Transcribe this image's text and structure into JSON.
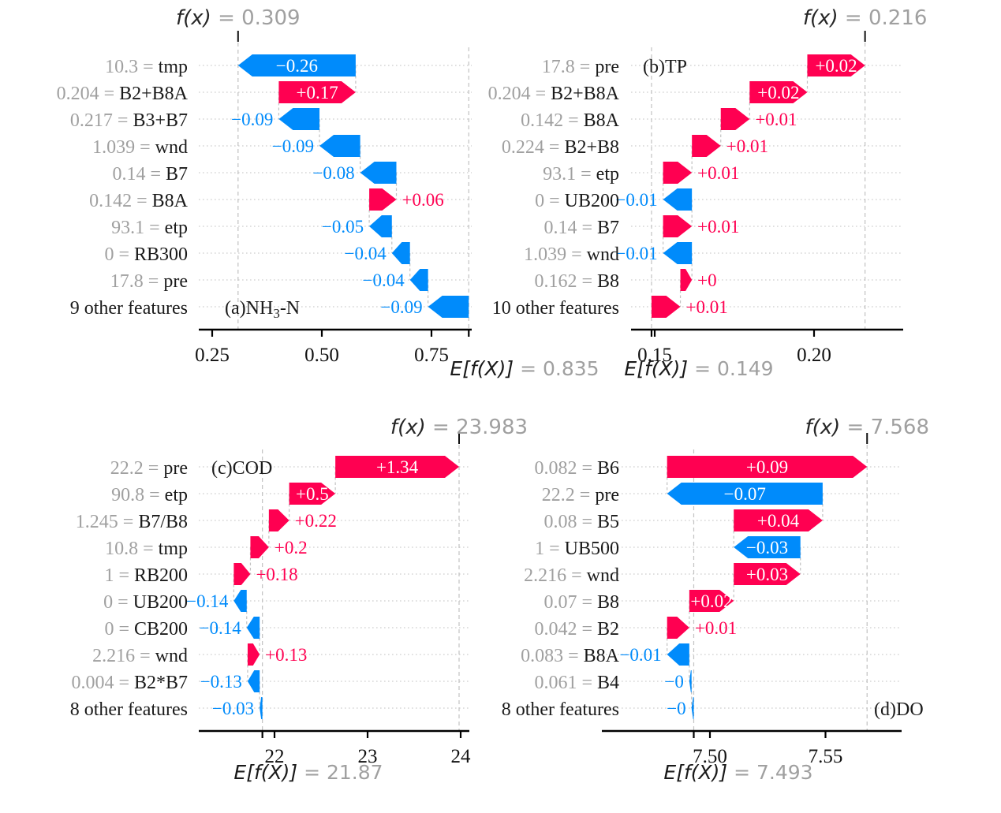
{
  "figure": {
    "colors": {
      "positive": "#ff0051",
      "negative": "#008bfb",
      "muted_text": "#a0a0a0",
      "ink": "#1a1a1a",
      "row_dots": "#d6d6d6",
      "guide_dash": "#c2c2c2"
    }
  },
  "chart_data": [
    {
      "id": "a",
      "type": "waterfall",
      "panel_label_segments": [
        {
          "text": "(a)NH"
        },
        {
          "text": "3",
          "subscript": true
        },
        {
          "text": "-N"
        }
      ],
      "fx": {
        "label": "f(x)",
        "eq": "=",
        "value": 0.309,
        "display": "0.309"
      },
      "ef": {
        "label": "E[f(X)]",
        "eq": "=",
        "value": 0.835,
        "display": "0.835"
      },
      "xticks": [
        {
          "v": 0.25,
          "label": "0.25"
        },
        {
          "v": 0.5,
          "label": "0.50"
        },
        {
          "v": 0.75,
          "label": "0.75"
        }
      ],
      "xrange": [
        0.219,
        0.842
      ],
      "features": [
        {
          "value": "10.3",
          "name": "tmp",
          "c": -0.26,
          "label": "−0.26",
          "label_inside": true
        },
        {
          "value": "0.204",
          "name": "B2+B8A",
          "c": 0.17,
          "label": "+0.17",
          "label_inside": true
        },
        {
          "value": "0.217",
          "name": "B3+B7",
          "c": -0.09,
          "label": "−0.09",
          "label_inside": false
        },
        {
          "value": "1.039",
          "name": "wnd",
          "c": -0.09,
          "label": "−0.09",
          "label_inside": false
        },
        {
          "value": "0.14",
          "name": "B7",
          "c": -0.08,
          "label": "−0.08",
          "label_inside": false
        },
        {
          "value": "0.142",
          "name": "B8A",
          "c": 0.06,
          "label": "+0.06",
          "label_inside": false
        },
        {
          "value": "93.1",
          "name": "etp",
          "c": -0.05,
          "label": "−0.05",
          "label_inside": false
        },
        {
          "value": "0",
          "name": "RB300",
          "c": -0.04,
          "label": "−0.04",
          "label_inside": false
        },
        {
          "value": "17.8",
          "name": "pre",
          "c": -0.04,
          "label": "−0.04",
          "label_inside": false
        },
        {
          "value": "",
          "name": "9 other features",
          "c": -0.09,
          "label": "−0.09",
          "label_inside": false
        }
      ]
    },
    {
      "id": "b",
      "type": "waterfall",
      "panel_label_segments": [
        {
          "text": "(b)TP"
        }
      ],
      "fx": {
        "label": "f(x)",
        "eq": "=",
        "value": 0.216,
        "display": "0.216"
      },
      "ef": {
        "label": "E[f(X)]",
        "eq": "=",
        "value": 0.149,
        "display": "0.149"
      },
      "xticks": [
        {
          "v": 0.15,
          "label": "0.15"
        },
        {
          "v": 0.2,
          "label": "0.20"
        }
      ],
      "xrange": [
        0.1426,
        0.228
      ],
      "features": [
        {
          "value": "17.8",
          "name": "pre",
          "c": 0.02,
          "label": "+0.02",
          "label_inside": true
        },
        {
          "value": "0.204",
          "name": "B2+B8A",
          "c": 0.02,
          "label": "+0.02",
          "label_inside": true
        },
        {
          "value": "0.142",
          "name": "B8A",
          "c": 0.01,
          "label": "+0.01",
          "label_inside": false
        },
        {
          "value": "0.224",
          "name": "B2+B8",
          "c": 0.01,
          "label": "+0.01",
          "label_inside": false
        },
        {
          "value": "93.1",
          "name": "etp",
          "c": 0.01,
          "label": "+0.01",
          "label_inside": false
        },
        {
          "value": "0",
          "name": "UB200",
          "c": -0.01,
          "label": "−0.01",
          "label_inside": false
        },
        {
          "value": "0.14",
          "name": "B7",
          "c": 0.01,
          "label": "+0.01",
          "label_inside": false
        },
        {
          "value": "1.039",
          "name": "wnd",
          "c": -0.01,
          "label": "−0.01",
          "label_inside": false
        },
        {
          "value": "0.162",
          "name": "B8",
          "c": 0.004,
          "label": "+0",
          "label_inside": false
        },
        {
          "value": "",
          "name": "10 other features",
          "c": 0.01,
          "label": "+0.01",
          "label_inside": false
        }
      ]
    },
    {
      "id": "c",
      "type": "waterfall",
      "panel_label_segments": [
        {
          "text": "(c)COD"
        }
      ],
      "fx": {
        "label": "f(x)",
        "eq": "=",
        "value": 23.983,
        "display": "23.983"
      },
      "ef": {
        "label": "E[f(X)]",
        "eq": "=",
        "value": 21.87,
        "display": "21.87"
      },
      "xticks": [
        {
          "v": 22,
          "label": "22"
        },
        {
          "v": 23,
          "label": "23"
        },
        {
          "v": 24,
          "label": "24"
        }
      ],
      "xrange": [
        21.19,
        24.09
      ],
      "features": [
        {
          "value": "22.2",
          "name": "pre",
          "c": 1.34,
          "label": "+1.34",
          "label_inside": true
        },
        {
          "value": "90.8",
          "name": "etp",
          "c": 0.5,
          "label": "+0.5",
          "label_inside": true
        },
        {
          "value": "1.245",
          "name": "B7/B8",
          "c": 0.22,
          "label": "+0.22",
          "label_inside": false
        },
        {
          "value": "10.8",
          "name": "tmp",
          "c": 0.2,
          "label": "+0.2",
          "label_inside": false
        },
        {
          "value": "1",
          "name": "RB200",
          "c": 0.18,
          "label": "+0.18",
          "label_inside": false
        },
        {
          "value": "0",
          "name": "UB200",
          "c": -0.14,
          "label": "−0.14",
          "label_inside": false
        },
        {
          "value": "0",
          "name": "CB200",
          "c": -0.14,
          "label": "−0.14",
          "label_inside": false
        },
        {
          "value": "2.216",
          "name": "wnd",
          "c": 0.13,
          "label": "+0.13",
          "label_inside": false
        },
        {
          "value": "0.004",
          "name": "B2*B7",
          "c": -0.13,
          "label": "−0.13",
          "label_inside": false
        },
        {
          "value": "",
          "name": "8 other features",
          "c": -0.03,
          "label": "−0.03",
          "label_inside": false
        }
      ]
    },
    {
      "id": "d",
      "type": "waterfall",
      "panel_label_segments": [
        {
          "text": "(d)DO"
        }
      ],
      "fx": {
        "label": "f(x)",
        "eq": "=",
        "value": 7.568,
        "display": "7.568"
      },
      "ef": {
        "label": "E[f(X)]",
        "eq": "=",
        "value": 7.493,
        "display": "7.493"
      },
      "xticks": [
        {
          "v": 7.5,
          "label": "7.50"
        },
        {
          "v": 7.55,
          "label": "7.55"
        }
      ],
      "xrange": [
        7.453,
        7.583
      ],
      "features": [
        {
          "value": "0.082",
          "name": "B6",
          "c": 0.09,
          "label": "+0.09",
          "label_inside": true
        },
        {
          "value": "22.2",
          "name": "pre",
          "c": -0.07,
          "label": "−0.07",
          "label_inside": true
        },
        {
          "value": "0.08",
          "name": "B5",
          "c": 0.04,
          "label": "+0.04",
          "label_inside": true
        },
        {
          "value": "1",
          "name": "UB500",
          "c": -0.03,
          "label": "−0.03",
          "label_inside": true
        },
        {
          "value": "2.216",
          "name": "wnd",
          "c": 0.03,
          "label": "+0.03",
          "label_inside": true
        },
        {
          "value": "0.07",
          "name": "B8",
          "c": 0.02,
          "label": "+0.02",
          "label_inside": true
        },
        {
          "value": "0.042",
          "name": "B2",
          "c": 0.01,
          "label": "+0.01",
          "label_inside": false
        },
        {
          "value": "0.083",
          "name": "B8A",
          "c": -0.01,
          "label": "−0.01",
          "label_inside": false
        },
        {
          "value": "0.061",
          "name": "B4",
          "c": -0.001,
          "label": "−0",
          "label_inside": false
        },
        {
          "value": "",
          "name": "8 other features",
          "c": -0.001,
          "label": "−0",
          "label_inside": false
        }
      ]
    }
  ]
}
